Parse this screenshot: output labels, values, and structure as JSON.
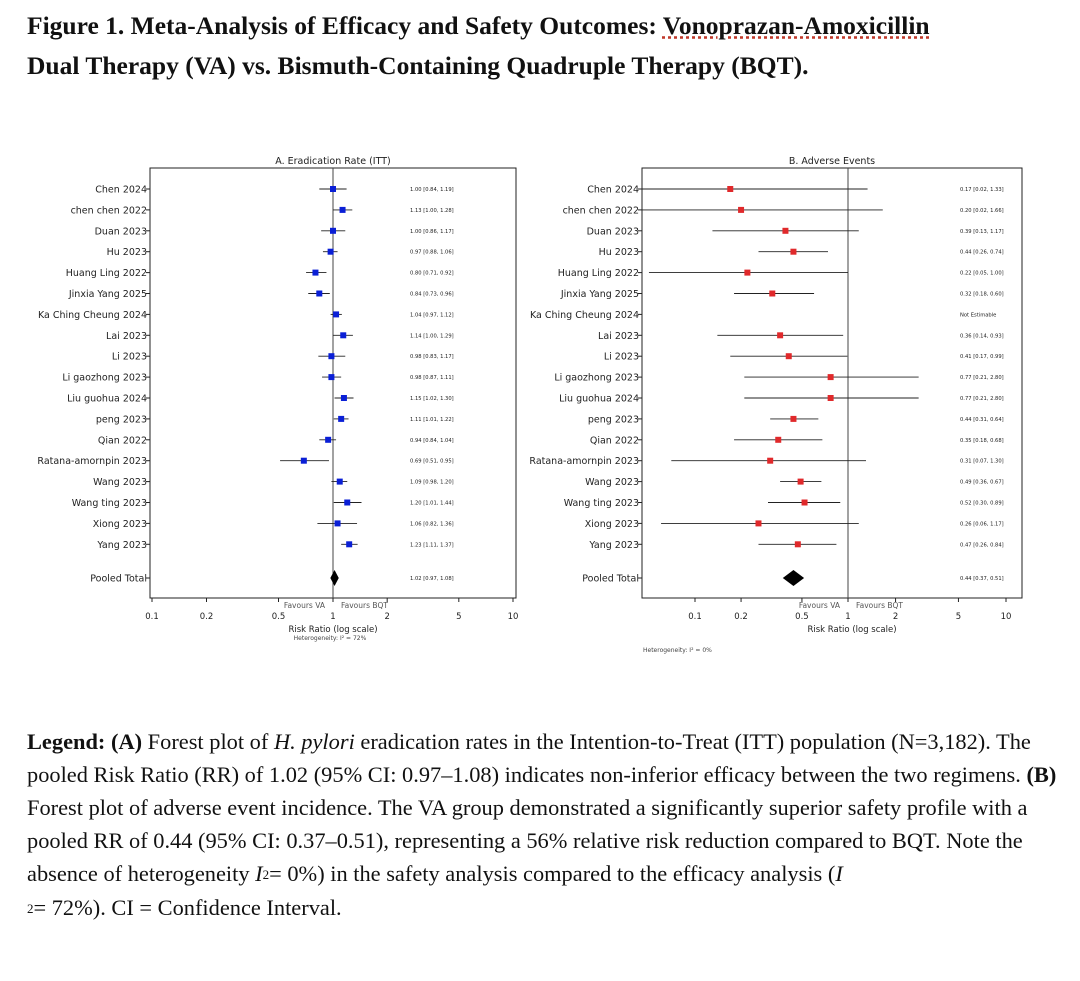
{
  "figure": {
    "title_part1": "Figure 1. Meta-Analysis of Efficacy and Safety Outcomes: ",
    "title_underlined": "Vonoprazan-Amoxicillin",
    "title_part2": "Dual Therapy (VA) vs. Bismuth-Containing Quadruple Therapy (BQT)."
  },
  "legend": {
    "heading": "Legend:",
    "label_a": "(A)",
    "text_a1": " Forest plot of ",
    "text_a_italic": "H. pylori",
    "text_a2": " eradication rates in the Intention-to-Treat (ITT) population (N=3,182). The pooled Risk Ratio (RR) of 1.02 (95% CI: 0.97–1.08) indicates non-inferior efficacy between the two regimens. ",
    "label_b": "(B)",
    "text_b1": " Forest plot of adverse event incidence. The VA group demonstrated a significantly superior safety profile with a pooled RR of 0.44 (95% CI: 0.37–0.51), representing a 56% relative risk reduction compared to BQT. Note the absence of heterogeneity ",
    "i_symbol": "I",
    "sup1": "2",
    "text_b2": "= 0%) in the safety analysis compared to the efficacy analysis (",
    "i_symbol2": "I",
    "sup2": "2",
    "text_b3": "= 72%). CI = Confidence Interval."
  },
  "chart_data": [
    {
      "type": "forest",
      "title": "A. Eradication Rate (ITT)",
      "xlabel": "Risk Ratio (log scale)",
      "footnote": "Heterogeneity: I² = 72%",
      "x_scale": "log",
      "xlim": [
        0.1,
        10
      ],
      "x_ticks": [
        0.1,
        0.2,
        0.5,
        1,
        2,
        5,
        10
      ],
      "x_tick_labels": [
        "0.1",
        "0.2",
        "0.5",
        "1",
        "2",
        "5",
        "10"
      ],
      "reference_line": 1,
      "favours_left": "Favours VA",
      "favours_right": "Favours BQT",
      "marker_color": "#0a1fd6",
      "studies": [
        {
          "name": "Chen 2024",
          "rr": 1.0,
          "lo": 0.84,
          "hi": 1.19,
          "label": "1.00 [0.84, 1.19]"
        },
        {
          "name": "chen chen 2022",
          "rr": 1.13,
          "lo": 1.0,
          "hi": 1.28,
          "label": "1.13 [1.00, 1.28]"
        },
        {
          "name": "Duan 2023",
          "rr": 1.0,
          "lo": 0.86,
          "hi": 1.17,
          "label": "1.00 [0.86, 1.17]"
        },
        {
          "name": "Hu 2023",
          "rr": 0.97,
          "lo": 0.88,
          "hi": 1.06,
          "label": "0.97 [0.88, 1.06]"
        },
        {
          "name": "Huang Ling 2022",
          "rr": 0.8,
          "lo": 0.71,
          "hi": 0.92,
          "label": "0.80 [0.71, 0.92]"
        },
        {
          "name": "Jinxia Yang 2025",
          "rr": 0.84,
          "lo": 0.73,
          "hi": 0.96,
          "label": "0.84 [0.73, 0.96]"
        },
        {
          "name": "Ka Ching Cheung 2024",
          "rr": 1.04,
          "lo": 0.97,
          "hi": 1.12,
          "label": "1.04 [0.97, 1.12]"
        },
        {
          "name": "Lai 2023",
          "rr": 1.14,
          "lo": 1.0,
          "hi": 1.29,
          "label": "1.14 [1.00, 1.29]"
        },
        {
          "name": "Li 2023",
          "rr": 0.98,
          "lo": 0.83,
          "hi": 1.17,
          "label": "0.98 [0.83, 1.17]"
        },
        {
          "name": "Li gaozhong 2023",
          "rr": 0.98,
          "lo": 0.87,
          "hi": 1.11,
          "label": "0.98 [0.87, 1.11]"
        },
        {
          "name": "Liu guohua 2024",
          "rr": 1.15,
          "lo": 1.02,
          "hi": 1.3,
          "label": "1.15 [1.02, 1.30]"
        },
        {
          "name": "peng 2023",
          "rr": 1.11,
          "lo": 1.01,
          "hi": 1.22,
          "label": "1.11 [1.01, 1.22]"
        },
        {
          "name": "Qian 2022",
          "rr": 0.94,
          "lo": 0.84,
          "hi": 1.04,
          "label": "0.94 [0.84, 1.04]"
        },
        {
          "name": "Ratana-amornpin 2023",
          "rr": 0.69,
          "lo": 0.51,
          "hi": 0.95,
          "label": "0.69 [0.51, 0.95]"
        },
        {
          "name": "Wang 2023",
          "rr": 1.09,
          "lo": 0.98,
          "hi": 1.2,
          "label": "1.09 [0.98, 1.20]"
        },
        {
          "name": "Wang ting 2023",
          "rr": 1.2,
          "lo": 1.01,
          "hi": 1.44,
          "label": "1.20 [1.01, 1.44]"
        },
        {
          "name": "Xiong 2023",
          "rr": 1.06,
          "lo": 0.82,
          "hi": 1.36,
          "label": "1.06 [0.82, 1.36]"
        },
        {
          "name": "Yang 2023",
          "rr": 1.23,
          "lo": 1.11,
          "hi": 1.37,
          "label": "1.23 [1.11, 1.37]"
        }
      ],
      "pooled": {
        "name": "Pooled Total",
        "rr": 1.02,
        "lo": 0.97,
        "hi": 1.08,
        "label": "1.02 [0.97, 1.08]"
      }
    },
    {
      "type": "forest",
      "title": "B. Adverse Events",
      "xlabel": "Risk Ratio (log scale)",
      "footnote": "Heterogeneity: I² = 0%",
      "x_scale": "log",
      "xlim": [
        0.05,
        12
      ],
      "x_ticks": [
        0.1,
        0.2,
        0.5,
        1,
        2,
        5,
        10
      ],
      "x_tick_labels": [
        "0.1",
        "0.2",
        "0.5",
        "1",
        "2",
        "5",
        "10"
      ],
      "reference_line": 1,
      "favours_left": "Favours VA",
      "favours_right": "Favours BQT",
      "marker_color": "#e0292b",
      "studies": [
        {
          "name": "Chen 2024",
          "rr": 0.17,
          "lo": 0.02,
          "hi": 1.33,
          "label": "0.17 [0.02, 1.33]"
        },
        {
          "name": "chen chen 2022",
          "rr": 0.2,
          "lo": 0.02,
          "hi": 1.66,
          "label": "0.20 [0.02, 1.66]"
        },
        {
          "name": "Duan 2023",
          "rr": 0.39,
          "lo": 0.13,
          "hi": 1.17,
          "label": "0.39 [0.13, 1.17]"
        },
        {
          "name": "Hu 2023",
          "rr": 0.44,
          "lo": 0.26,
          "hi": 0.74,
          "label": "0.44 [0.26, 0.74]"
        },
        {
          "name": "Huang Ling 2022",
          "rr": 0.22,
          "lo": 0.05,
          "hi": 1.0,
          "label": "0.22 [0.05, 1.00]"
        },
        {
          "name": "Jinxia Yang 2025",
          "rr": 0.32,
          "lo": 0.18,
          "hi": 0.6,
          "label": "0.32 [0.18, 0.60]"
        },
        {
          "name": "Ka Ching Cheung 2024",
          "rr": null,
          "lo": null,
          "hi": null,
          "label": "Not Estimable"
        },
        {
          "name": "Lai 2023",
          "rr": 0.36,
          "lo": 0.14,
          "hi": 0.93,
          "label": "0.36 [0.14, 0.93]"
        },
        {
          "name": "Li 2023",
          "rr": 0.41,
          "lo": 0.17,
          "hi": 0.99,
          "label": "0.41 [0.17, 0.99]"
        },
        {
          "name": "Li gaozhong 2023",
          "rr": 0.77,
          "lo": 0.21,
          "hi": 2.8,
          "label": "0.77 [0.21, 2.80]"
        },
        {
          "name": "Liu guohua 2024",
          "rr": 0.77,
          "lo": 0.21,
          "hi": 2.8,
          "label": "0.77 [0.21, 2.80]"
        },
        {
          "name": "peng 2023",
          "rr": 0.44,
          "lo": 0.31,
          "hi": 0.64,
          "label": "0.44 [0.31, 0.64]"
        },
        {
          "name": "Qian 2022",
          "rr": 0.35,
          "lo": 0.18,
          "hi": 0.68,
          "label": "0.35 [0.18, 0.68]"
        },
        {
          "name": "Ratana-amornpin 2023",
          "rr": 0.31,
          "lo": 0.07,
          "hi": 1.3,
          "label": "0.31 [0.07, 1.30]"
        },
        {
          "name": "Wang 2023",
          "rr": 0.49,
          "lo": 0.36,
          "hi": 0.67,
          "label": "0.49 [0.36, 0.67]"
        },
        {
          "name": "Wang ting 2023",
          "rr": 0.52,
          "lo": 0.3,
          "hi": 0.89,
          "label": "0.52 [0.30, 0.89]"
        },
        {
          "name": "Xiong 2023",
          "rr": 0.26,
          "lo": 0.06,
          "hi": 1.17,
          "label": "0.26 [0.06, 1.17]"
        },
        {
          "name": "Yang 2023",
          "rr": 0.47,
          "lo": 0.26,
          "hi": 0.84,
          "label": "0.47 [0.26, 0.84]"
        }
      ],
      "pooled": {
        "name": "Pooled Total",
        "rr": 0.44,
        "lo": 0.37,
        "hi": 0.51,
        "label": "0.44 [0.37, 0.51]"
      }
    }
  ]
}
